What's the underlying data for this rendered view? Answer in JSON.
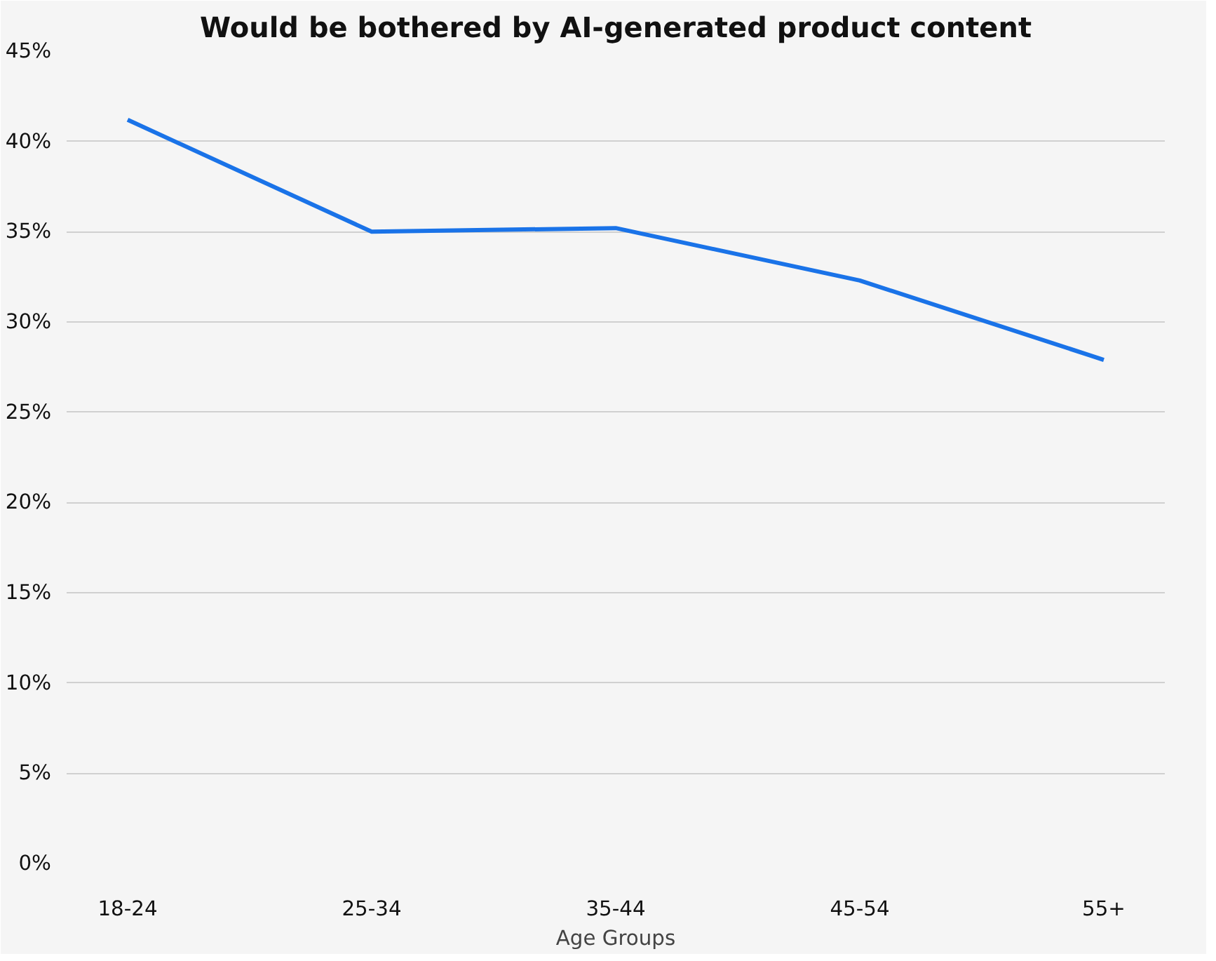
{
  "chart_data": {
    "type": "line",
    "title": "Would be bothered by AI-generated product content",
    "xlabel": "Age Groups",
    "categories": [
      "18-24",
      "25-34",
      "35-44",
      "45-54",
      "55+"
    ],
    "series": [
      {
        "color": "#1a73e8",
        "values": [
          41.2,
          35.0,
          35.2,
          32.3,
          27.9
        ]
      }
    ],
    "ylim": [
      0,
      45
    ],
    "yticks": [
      {
        "value": 0,
        "label": "0%"
      },
      {
        "value": 5,
        "label": "5%"
      },
      {
        "value": 10,
        "label": "10%"
      },
      {
        "value": 15,
        "label": "15%"
      },
      {
        "value": 20,
        "label": "20%"
      },
      {
        "value": 25,
        "label": "25%"
      },
      {
        "value": 30,
        "label": "30%"
      },
      {
        "value": 35,
        "label": "35%"
      },
      {
        "value": 40,
        "label": "40%"
      },
      {
        "value": 45,
        "label": "45%"
      }
    ],
    "grid": "y",
    "marker": "none",
    "line_style": "solid"
  }
}
